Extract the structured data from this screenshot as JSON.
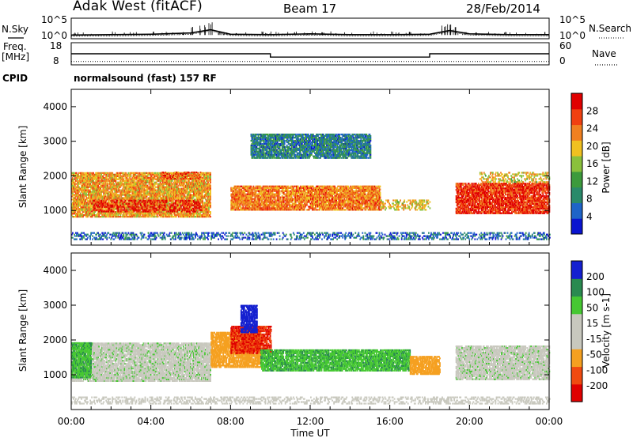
{
  "header": {
    "title": "Adak West (fitACF)",
    "beam": "Beam 17",
    "date": "28/Feb/2014"
  },
  "nsky_panel": {
    "left_label": "N.Sky",
    "right_label": "N.Search",
    "left_ticks": [
      "10^5",
      "10^0"
    ],
    "right_ticks": [
      "10^5",
      "10^0"
    ]
  },
  "freq_panel": {
    "left_label_line1": "Freq.",
    "left_label_line2": "[MHz]",
    "right_label": "Nave",
    "left_ticks": [
      "18",
      "8"
    ],
    "right_ticks": [
      "60",
      "0"
    ]
  },
  "cpid_panel": {
    "label": "CPID",
    "text": "normalsound (fast) 157 RF"
  },
  "x_axis": {
    "title": "Time UT",
    "ticks": [
      "00:00",
      "04:00",
      "08:00",
      "12:00",
      "16:00",
      "20:00",
      "00:00"
    ]
  },
  "power_panel": {
    "ylabel": "Slant Range [km]",
    "yticks": [
      "4000",
      "3000",
      "2000",
      "1000"
    ],
    "colorbar_label": "Power [dB]",
    "colorbar_ticks": [
      "28",
      "24",
      "20",
      "16",
      "12",
      "8",
      "4"
    ]
  },
  "velocity_panel": {
    "ylabel": "Slant Range [km]",
    "yticks": [
      "4000",
      "3000",
      "2000",
      "1000"
    ],
    "colorbar_label": "Velocity [m s-1]",
    "colorbar_ticks": [
      "200",
      "100",
      "50",
      "15",
      "-15",
      "-50",
      "-100",
      "-200"
    ]
  },
  "colors": {
    "power_scale": [
      "#0a14d0",
      "#1e64c8",
      "#2a8a6a",
      "#3c9a3c",
      "#8ac03c",
      "#f0c020",
      "#f08020",
      "#f04010",
      "#e00000"
    ],
    "velocity_scale": [
      "#e00000",
      "#f04a10",
      "#f5a020",
      "#c8c8be",
      "#c8c8be",
      "#46c832",
      "#2a8a50",
      "#1420d0"
    ]
  },
  "chart_data": [
    {
      "type": "line",
      "name": "N.Sky",
      "x": [
        "00:00",
        "02:00",
        "04:00",
        "06:00",
        "07:00",
        "08:00",
        "10:00",
        "12:00",
        "14:00",
        "16:00",
        "18:00",
        "19:00",
        "20:00",
        "22:00",
        "24:00"
      ],
      "values_log10": [
        0.9,
        1.0,
        1.1,
        1.4,
        2.2,
        1.1,
        1.0,
        1.2,
        1.0,
        1.0,
        1.1,
        2.0,
        1.2,
        1.0,
        1.0
      ],
      "ylim": [
        "10^0",
        "10^5"
      ]
    },
    {
      "type": "line",
      "name": "Freq",
      "ylabel": "Freq. [MHz]",
      "ylim": [
        8,
        18
      ],
      "x": [
        "00:00",
        "10:00",
        "10:00",
        "18:00",
        "18:00",
        "24:00"
      ],
      "values": [
        13.0,
        13.0,
        11.5,
        11.5,
        13.0,
        13.0
      ]
    },
    {
      "type": "line",
      "name": "Nave",
      "ylim": [
        0,
        60
      ],
      "x": [
        "00:00",
        "24:00"
      ],
      "values": [
        9,
        9
      ]
    },
    {
      "type": "heatmap",
      "name": "Power",
      "xlabel": "Time UT",
      "ylabel": "Slant Range [km]",
      "xlim": [
        "00:00",
        "24:00"
      ],
      "ylim": [
        0,
        4500
      ],
      "colorbar": {
        "label": "Power [dB]",
        "ticks": [
          4,
          8,
          12,
          16,
          20,
          24,
          28
        ]
      },
      "scatter_regions": [
        {
          "t_start": 0.0,
          "t_end": 7.0,
          "range_low": 800,
          "range_high": 2100,
          "power_db": 20
        },
        {
          "t_start": 1.0,
          "t_end": 6.5,
          "range_low": 950,
          "range_high": 1300,
          "power_db": 28
        },
        {
          "t_start": 4.5,
          "t_end": 6.5,
          "range_low": 1900,
          "range_high": 2100,
          "power_db": 24
        },
        {
          "t_start": 8.0,
          "t_end": 15.5,
          "range_low": 1000,
          "range_high": 1700,
          "power_db": 22
        },
        {
          "t_start": 15.5,
          "t_end": 18.0,
          "range_low": 1000,
          "range_high": 1300,
          "power_db": 18
        },
        {
          "t_start": 19.3,
          "t_end": 24.0,
          "range_low": 900,
          "range_high": 1800,
          "power_db": 26
        },
        {
          "t_start": 20.5,
          "t_end": 24.0,
          "range_low": 1800,
          "range_high": 2100,
          "power_db": 18
        },
        {
          "t_start": 9.0,
          "t_end": 15.0,
          "range_low": 2500,
          "range_high": 3200,
          "power_db": 8
        },
        {
          "t_start": 0.0,
          "t_end": 24.0,
          "range_low": 150,
          "range_high": 350,
          "power_db": 6
        }
      ]
    },
    {
      "type": "heatmap",
      "name": "Velocity",
      "xlabel": "Time UT",
      "ylabel": "Slant Range [km]",
      "xlim": [
        "00:00",
        "24:00"
      ],
      "ylim": [
        0,
        4500
      ],
      "colorbar": {
        "label": "Velocity [m s-1]",
        "ticks": [
          -200,
          -100,
          -50,
          -15,
          15,
          50,
          100,
          200
        ]
      },
      "scatter_regions": [
        {
          "t_start": 0.0,
          "t_end": 7.0,
          "range_low": 800,
          "range_high": 1900,
          "velocity": 0
        },
        {
          "t_start": 0.0,
          "t_end": 1.0,
          "range_low": 900,
          "range_high": 1900,
          "velocity": 40
        },
        {
          "t_start": 7.0,
          "t_end": 9.5,
          "range_low": 1200,
          "range_high": 2200,
          "velocity": -70
        },
        {
          "t_start": 8.0,
          "t_end": 10.0,
          "range_low": 1600,
          "range_high": 2400,
          "velocity": -200
        },
        {
          "t_start": 9.5,
          "t_end": 17.0,
          "range_low": 1100,
          "range_high": 1700,
          "velocity": 40
        },
        {
          "t_start": 17.0,
          "t_end": 18.5,
          "range_low": 1000,
          "range_high": 1500,
          "velocity": -70
        },
        {
          "t_start": 19.3,
          "t_end": 24.0,
          "range_low": 850,
          "range_high": 1800,
          "velocity": 0
        },
        {
          "t_start": 8.5,
          "t_end": 9.3,
          "range_low": 2200,
          "range_high": 3000,
          "velocity": 200
        },
        {
          "t_start": 0.0,
          "t_end": 24.0,
          "range_low": 150,
          "range_high": 350,
          "velocity": -30
        }
      ]
    }
  ]
}
